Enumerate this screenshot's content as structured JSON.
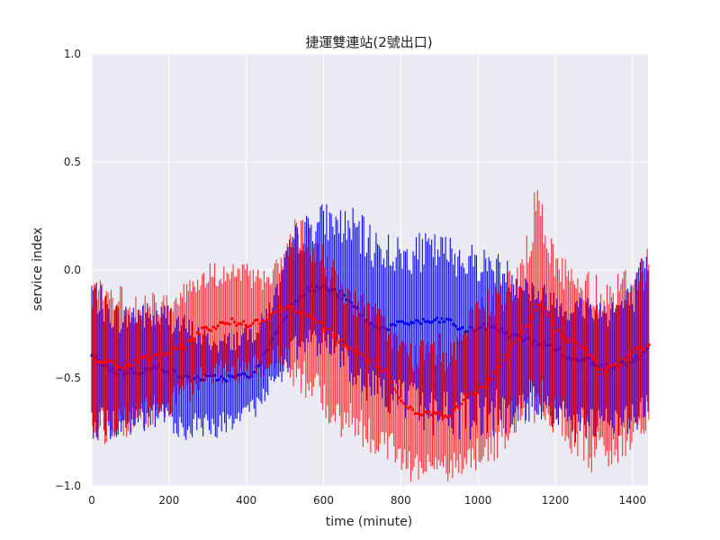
{
  "chart_data": {
    "type": "line",
    "title": "捷運雙連站(2號出口)",
    "xlabel": "time (minute)",
    "ylabel": "service index",
    "xlim": [
      0,
      1440
    ],
    "ylim": [
      -1.0,
      1.0
    ],
    "xticks": [
      0,
      200,
      400,
      600,
      800,
      1000,
      1200,
      1400
    ],
    "yticks": [
      -1.0,
      -0.5,
      0.0,
      0.5,
      1.0
    ],
    "ytick_labels": [
      "−1.0",
      "−0.5",
      "0.0",
      "0.5",
      "1.0"
    ],
    "grid": true,
    "background": "#eaeaf2",
    "series": [
      {
        "color": "#0000ff",
        "mean": [
          [
            0,
            -0.4
          ],
          [
            60,
            -0.47
          ],
          [
            120,
            -0.47
          ],
          [
            180,
            -0.45
          ],
          [
            240,
            -0.5
          ],
          [
            300,
            -0.5
          ],
          [
            360,
            -0.5
          ],
          [
            420,
            -0.48
          ],
          [
            480,
            -0.28
          ],
          [
            520,
            -0.15
          ],
          [
            560,
            -0.09
          ],
          [
            600,
            -0.08
          ],
          [
            640,
            -0.11
          ],
          [
            680,
            -0.17
          ],
          [
            720,
            -0.25
          ],
          [
            760,
            -0.27
          ],
          [
            800,
            -0.25
          ],
          [
            840,
            -0.24
          ],
          [
            880,
            -0.24
          ],
          [
            920,
            -0.23
          ],
          [
            960,
            -0.28
          ],
          [
            1000,
            -0.27
          ],
          [
            1040,
            -0.26
          ],
          [
            1080,
            -0.3
          ],
          [
            1120,
            -0.32
          ],
          [
            1160,
            -0.34
          ],
          [
            1200,
            -0.36
          ],
          [
            1240,
            -0.42
          ],
          [
            1280,
            -0.4
          ],
          [
            1320,
            -0.45
          ],
          [
            1360,
            -0.44
          ],
          [
            1400,
            -0.43
          ],
          [
            1440,
            -0.37
          ]
        ],
        "upper": [
          [
            0,
            0.0
          ],
          [
            40,
            -0.12
          ],
          [
            80,
            -0.16
          ],
          [
            120,
            -0.12
          ],
          [
            160,
            -0.16
          ],
          [
            200,
            -0.14
          ],
          [
            240,
            -0.2
          ],
          [
            280,
            -0.25
          ],
          [
            320,
            -0.3
          ],
          [
            360,
            -0.28
          ],
          [
            400,
            -0.25
          ],
          [
            440,
            -0.2
          ],
          [
            480,
            -0.05
          ],
          [
            520,
            0.2
          ],
          [
            560,
            0.27
          ],
          [
            600,
            0.32
          ],
          [
            640,
            0.3
          ],
          [
            680,
            0.29
          ],
          [
            720,
            0.22
          ],
          [
            760,
            0.2
          ],
          [
            800,
            0.15
          ],
          [
            840,
            0.17
          ],
          [
            880,
            0.18
          ],
          [
            920,
            0.17
          ],
          [
            960,
            0.15
          ],
          [
            1000,
            0.12
          ],
          [
            1040,
            0.1
          ],
          [
            1080,
            0.05
          ],
          [
            1120,
            0.0
          ],
          [
            1160,
            -0.05
          ],
          [
            1200,
            -0.08
          ],
          [
            1240,
            -0.12
          ],
          [
            1280,
            -0.1
          ],
          [
            1320,
            -0.12
          ],
          [
            1360,
            -0.1
          ],
          [
            1400,
            -0.05
          ],
          [
            1440,
            0.14
          ]
        ],
        "lower": [
          [
            0,
            -0.78
          ],
          [
            40,
            -0.8
          ],
          [
            80,
            -0.8
          ],
          [
            120,
            -0.77
          ],
          [
            160,
            -0.76
          ],
          [
            200,
            -0.74
          ],
          [
            240,
            -0.8
          ],
          [
            280,
            -0.78
          ],
          [
            320,
            -0.78
          ],
          [
            360,
            -0.77
          ],
          [
            400,
            -0.73
          ],
          [
            440,
            -0.65
          ],
          [
            480,
            -0.55
          ],
          [
            520,
            -0.45
          ],
          [
            560,
            -0.4
          ],
          [
            600,
            -0.4
          ],
          [
            640,
            -0.45
          ],
          [
            680,
            -0.55
          ],
          [
            720,
            -0.62
          ],
          [
            760,
            -0.66
          ],
          [
            800,
            -0.7
          ],
          [
            840,
            -0.75
          ],
          [
            880,
            -0.77
          ],
          [
            920,
            -0.78
          ],
          [
            960,
            -0.8
          ],
          [
            1000,
            -0.78
          ],
          [
            1040,
            -0.77
          ],
          [
            1080,
            -0.8
          ],
          [
            1120,
            -0.72
          ],
          [
            1160,
            -0.7
          ],
          [
            1200,
            -0.75
          ],
          [
            1240,
            -0.8
          ],
          [
            1280,
            -0.82
          ],
          [
            1320,
            -0.8
          ],
          [
            1360,
            -0.78
          ],
          [
            1400,
            -0.78
          ],
          [
            1440,
            -0.68
          ]
        ]
      },
      {
        "color": "#ff0000",
        "mean": [
          [
            0,
            -0.42
          ],
          [
            40,
            -0.43
          ],
          [
            80,
            -0.45
          ],
          [
            120,
            -0.42
          ],
          [
            160,
            -0.4
          ],
          [
            200,
            -0.38
          ],
          [
            240,
            -0.35
          ],
          [
            280,
            -0.28
          ],
          [
            320,
            -0.26
          ],
          [
            360,
            -0.24
          ],
          [
            400,
            -0.25
          ],
          [
            440,
            -0.23
          ],
          [
            480,
            -0.18
          ],
          [
            520,
            -0.17
          ],
          [
            560,
            -0.22
          ],
          [
            600,
            -0.27
          ],
          [
            640,
            -0.33
          ],
          [
            680,
            -0.38
          ],
          [
            720,
            -0.42
          ],
          [
            760,
            -0.48
          ],
          [
            800,
            -0.62
          ],
          [
            840,
            -0.67
          ],
          [
            880,
            -0.66
          ],
          [
            920,
            -0.68
          ],
          [
            960,
            -0.6
          ],
          [
            1000,
            -0.55
          ],
          [
            1040,
            -0.48
          ],
          [
            1080,
            -0.37
          ],
          [
            1120,
            -0.27
          ],
          [
            1160,
            -0.15
          ],
          [
            1200,
            -0.28
          ],
          [
            1240,
            -0.33
          ],
          [
            1280,
            -0.38
          ],
          [
            1320,
            -0.47
          ],
          [
            1360,
            -0.44
          ],
          [
            1400,
            -0.38
          ],
          [
            1440,
            -0.35
          ]
        ],
        "upper": [
          [
            0,
            -0.02
          ],
          [
            40,
            -0.05
          ],
          [
            80,
            -0.08
          ],
          [
            120,
            -0.12
          ],
          [
            160,
            -0.1
          ],
          [
            200,
            -0.08
          ],
          [
            240,
            -0.04
          ],
          [
            280,
            0.02
          ],
          [
            320,
            0.05
          ],
          [
            360,
            0.05
          ],
          [
            400,
            0.03
          ],
          [
            440,
            0.02
          ],
          [
            480,
            0.05
          ],
          [
            520,
            0.25
          ],
          [
            560,
            0.22
          ],
          [
            600,
            0.12
          ],
          [
            640,
            0.0
          ],
          [
            680,
            -0.08
          ],
          [
            720,
            -0.12
          ],
          [
            760,
            -0.2
          ],
          [
            800,
            -0.3
          ],
          [
            840,
            -0.33
          ],
          [
            880,
            -0.28
          ],
          [
            920,
            -0.3
          ],
          [
            960,
            -0.22
          ],
          [
            1000,
            -0.12
          ],
          [
            1040,
            -0.05
          ],
          [
            1080,
            0.0
          ],
          [
            1120,
            0.12
          ],
          [
            1150,
            0.45
          ],
          [
            1170,
            0.25
          ],
          [
            1200,
            0.12
          ],
          [
            1240,
            0.03
          ],
          [
            1280,
            0.01
          ],
          [
            1320,
            -0.02
          ],
          [
            1360,
            0.0
          ],
          [
            1400,
            0.05
          ],
          [
            1440,
            0.14
          ]
        ],
        "lower": [
          [
            0,
            -0.78
          ],
          [
            40,
            -0.82
          ],
          [
            80,
            -0.78
          ],
          [
            120,
            -0.76
          ],
          [
            160,
            -0.72
          ],
          [
            200,
            -0.68
          ],
          [
            240,
            -0.62
          ],
          [
            280,
            -0.58
          ],
          [
            320,
            -0.56
          ],
          [
            360,
            -0.55
          ],
          [
            400,
            -0.53
          ],
          [
            440,
            -0.5
          ],
          [
            480,
            -0.45
          ],
          [
            520,
            -0.55
          ],
          [
            560,
            -0.62
          ],
          [
            600,
            -0.7
          ],
          [
            640,
            -0.78
          ],
          [
            680,
            -0.82
          ],
          [
            720,
            -0.85
          ],
          [
            760,
            -0.88
          ],
          [
            800,
            -0.95
          ],
          [
            840,
            -1.0
          ],
          [
            880,
            -1.0
          ],
          [
            920,
            -0.98
          ],
          [
            960,
            -1.0
          ],
          [
            1000,
            -0.95
          ],
          [
            1040,
            -0.9
          ],
          [
            1080,
            -0.82
          ],
          [
            1120,
            -0.72
          ],
          [
            1160,
            -0.7
          ],
          [
            1200,
            -0.8
          ],
          [
            1240,
            -0.88
          ],
          [
            1280,
            -0.92
          ],
          [
            1320,
            -0.98
          ],
          [
            1360,
            -0.95
          ],
          [
            1400,
            -0.85
          ],
          [
            1440,
            -0.72
          ]
        ]
      }
    ]
  }
}
